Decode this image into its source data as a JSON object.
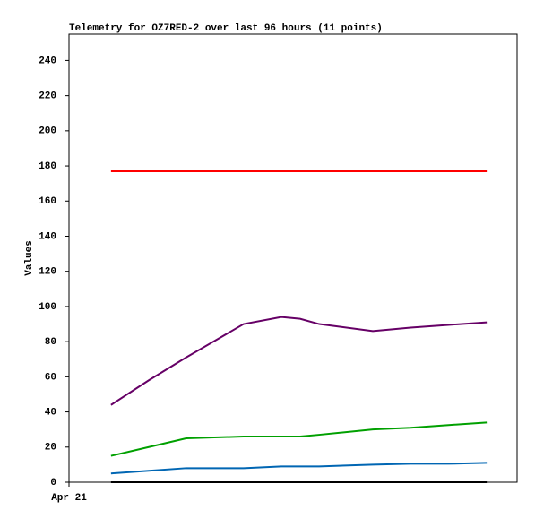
{
  "chart_data": {
    "type": "line",
    "title": "Telemetry for OZ7RED-2 over last 96 hours (11 points)",
    "y_label": "Values",
    "x": [
      9.0,
      17.1,
      25.1,
      37.4,
      45.5,
      49.5,
      53.6,
      65.1,
      73.2,
      81.3,
      89.5
    ],
    "xlim": [
      0,
      96
    ],
    "xticks": [
      {
        "value": 0,
        "label": "Apr 21"
      }
    ],
    "ylim": [
      0,
      255
    ],
    "yticks": [
      0,
      20,
      40,
      60,
      80,
      100,
      120,
      140,
      160,
      180,
      200,
      220,
      240
    ],
    "series": [
      {
        "color": "#ff0000",
        "values": [
          177,
          177,
          177,
          177,
          177,
          177,
          177,
          177,
          177,
          177,
          177
        ]
      },
      {
        "color": "#660066",
        "values": [
          44,
          58,
          71,
          90,
          94,
          93,
          90,
          86,
          88,
          89.5,
          91
        ]
      },
      {
        "color": "#00a000",
        "values": [
          15,
          20,
          25,
          26,
          26,
          26,
          27,
          30,
          31,
          32.5,
          34
        ]
      },
      {
        "color": "#0066b3",
        "values": [
          5,
          6.5,
          8,
          8,
          9,
          9,
          9,
          10,
          10.5,
          10.5,
          11
        ]
      },
      {
        "color": "#000000",
        "values": [
          0,
          0,
          0,
          0,
          0,
          0,
          0,
          0,
          0,
          0,
          0
        ]
      }
    ]
  }
}
